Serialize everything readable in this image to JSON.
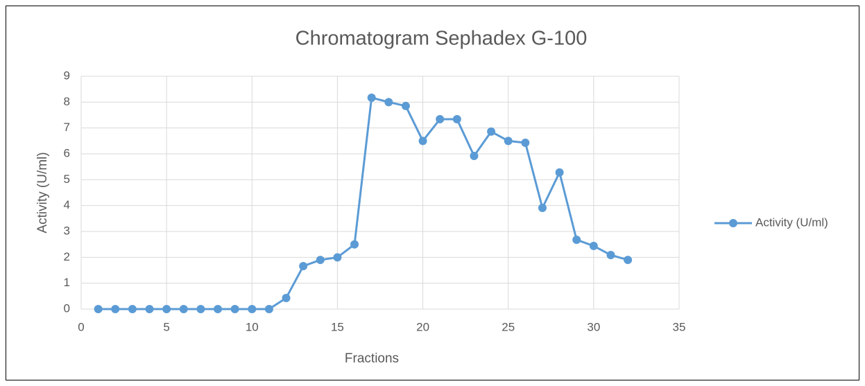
{
  "chart_data": {
    "type": "line",
    "title": "Chromatogram Sephadex G-100",
    "x_label": "Fractions",
    "y_label": "Activity (U/ml)",
    "x": [
      1,
      2,
      3,
      4,
      5,
      6,
      7,
      8,
      9,
      10,
      11,
      12,
      13,
      14,
      15,
      16,
      17,
      18,
      19,
      20,
      21,
      22,
      23,
      24,
      25,
      26,
      27,
      28,
      29,
      30,
      31,
      32
    ],
    "series": [
      {
        "name": "Activity (U/ml)",
        "color": "#5b9bd5",
        "values": [
          0,
          0,
          0,
          0,
          0,
          0,
          0,
          0,
          0,
          0,
          0,
          0.43,
          1.66,
          1.9,
          2.0,
          2.5,
          8.17,
          8.0,
          7.85,
          6.5,
          7.34,
          7.34,
          5.92,
          6.86,
          6.5,
          6.43,
          3.91,
          5.28,
          2.68,
          2.44,
          2.09,
          1.9
        ]
      }
    ],
    "xlim": [
      0,
      35
    ],
    "xticks": [
      0,
      5,
      10,
      15,
      20,
      25,
      30,
      35
    ],
    "ylim": [
      0,
      9
    ],
    "yticks": [
      0,
      1,
      2,
      3,
      4,
      5,
      6,
      7,
      8,
      9
    ],
    "grid": true,
    "legend": "right"
  }
}
